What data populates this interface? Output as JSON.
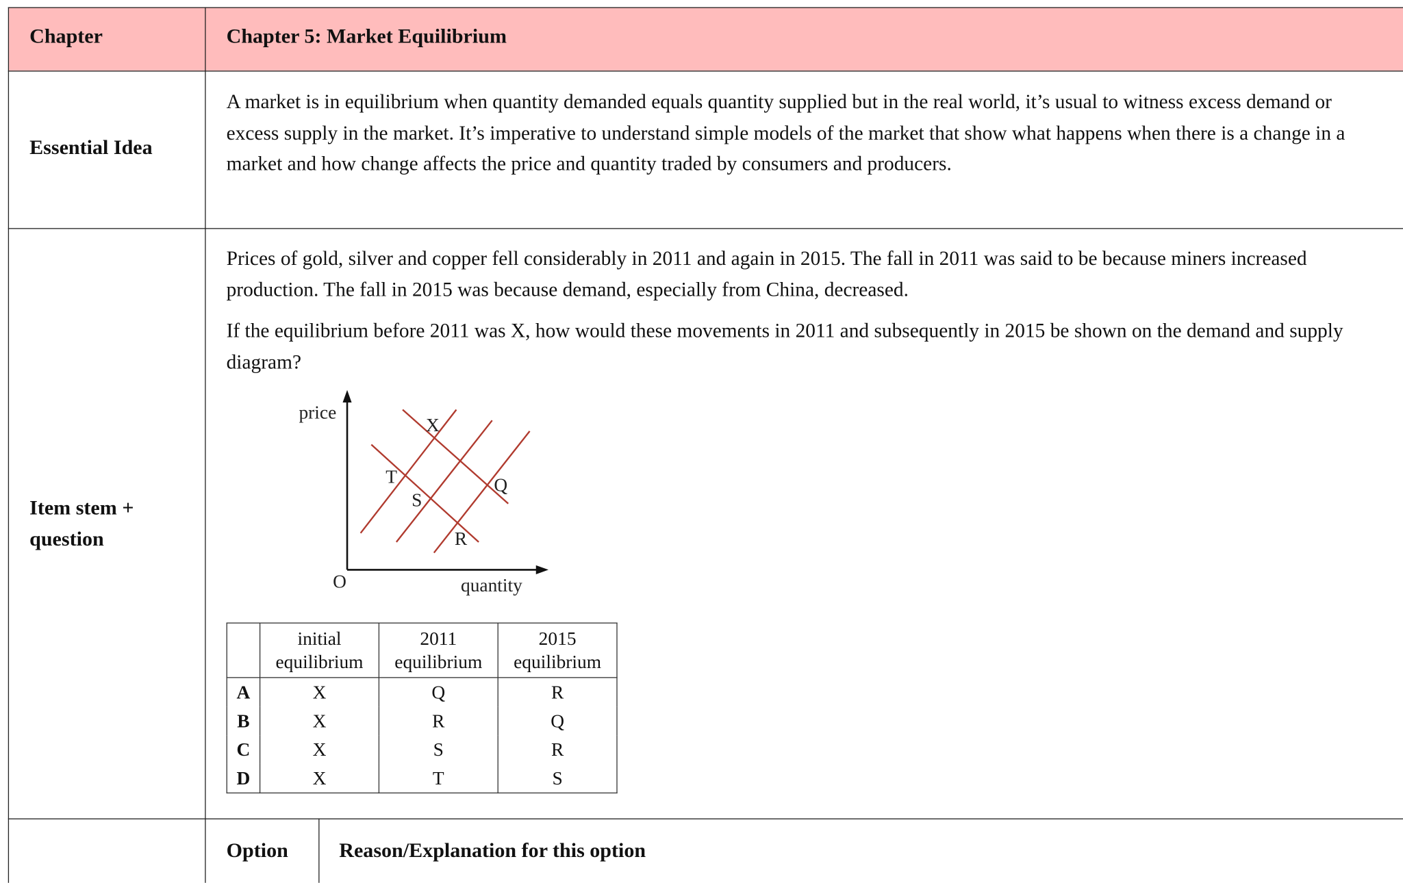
{
  "header": {
    "label": "Chapter",
    "title": "Chapter 5: Market Equilibrium"
  },
  "essential_idea": {
    "label": "Essential Idea",
    "text": "A market is in equilibrium when quantity demanded equals quantity supplied but in the real world, it’s usual to witness excess demand or excess supply in the market. It’s imperative to understand simple models of the market that show what happens when there is a change in a market and how change affects the price and quantity traded by consumers and producers."
  },
  "item_stem": {
    "label": "Item stem + question",
    "paragraphs": [
      "Prices of gold, silver and copper fell considerably in 2011 and again in 2015. The fall in 2011 was said to be because miners increased production. The fall in 2015 was because demand, especially from China, decreased.",
      "If the equilibrium before 2011 was X, how would these movements in 2011 and subsequently in 2015 be shown on the demand and supply diagram?"
    ],
    "diagram": {
      "y_axis": "price",
      "x_axis": "quantity",
      "origin": "O",
      "points": [
        "X",
        "T",
        "S",
        "Q",
        "R"
      ]
    },
    "options_table": {
      "header": [
        "initial equilibrium",
        "2011 equilibrium",
        "2015 equilibrium"
      ],
      "rows": [
        {
          "option": "A",
          "cells": [
            "X",
            "Q",
            "R"
          ]
        },
        {
          "option": "B",
          "cells": [
            "X",
            "R",
            "Q"
          ]
        },
        {
          "option": "C",
          "cells": [
            "X",
            "S",
            "R"
          ]
        },
        {
          "option": "D",
          "cells": [
            "X",
            "T",
            "S"
          ]
        }
      ]
    }
  },
  "answer_header": {
    "option": "Option",
    "reason": "Reason/Explanation for this option"
  }
}
